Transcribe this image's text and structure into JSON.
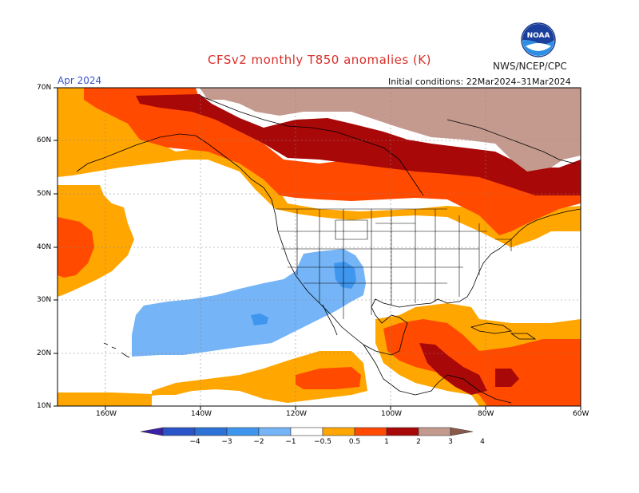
{
  "title": "CFSv2 monthly T850 anomalies (K)",
  "agency": "NWS/NCEP/CPC",
  "logo_text": "NOAA",
  "valid_month": "Apr 2024",
  "initial_conditions": "Initial conditions: 22Mar2024–31Mar2024",
  "lat_labels": [
    "70N",
    "60N",
    "50N",
    "40N",
    "30N",
    "20N",
    "10N"
  ],
  "lon_labels": [
    "160W",
    "140W",
    "120W",
    "100W",
    "80W",
    "60W"
  ],
  "colorbar": {
    "tick_labels": [
      "−4",
      "−3",
      "−2",
      "−1",
      "−0.5",
      "0.5",
      "1",
      "2",
      "3",
      "4"
    ],
    "colors": [
      "#3b1fa8",
      "#2a55c8",
      "#2d72d6",
      "#3f96ee",
      "#75b4f7",
      "#ffffff",
      "#ffa600",
      "#ff4a00",
      "#a80808",
      "#c49a8e",
      "#8a5a48"
    ]
  },
  "colors": {
    "title": "#d8302a",
    "month": "#3a52c8",
    "anom_05_1": "#ffa600",
    "anom_1_2": "#ff4a00",
    "anom_2_3": "#a80808",
    "anom_3_4": "#c49a8e",
    "anom_m05_m1": "#75b4f7",
    "anom_m1_m2": "#3f96ee"
  }
}
